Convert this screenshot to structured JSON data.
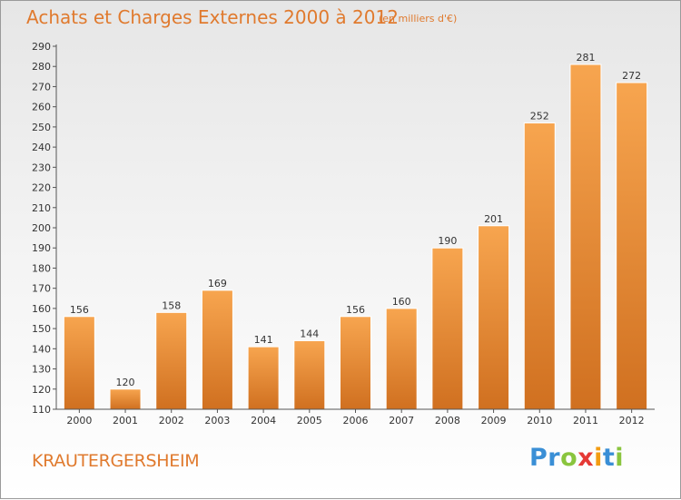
{
  "header": {
    "title": "Achats et Charges Externes 2000 à 2012",
    "unit_note": "(en milliers d'€)"
  },
  "footer": {
    "commune": "KRAUTERGERSHEIM"
  },
  "logo": {
    "text": "Proxiti",
    "letters": [
      {
        "ch": "P",
        "color": "#3a8fd6"
      },
      {
        "ch": "r",
        "color": "#3a8fd6"
      },
      {
        "ch": "o",
        "color": "#8ac53e"
      },
      {
        "ch": "x",
        "color": "#e53935"
      },
      {
        "ch": "i",
        "color": "#f39c12"
      },
      {
        "ch": "t",
        "color": "#3a8fd6"
      },
      {
        "ch": "i",
        "color": "#8ac53e"
      }
    ]
  },
  "colors": {
    "accent": "#e07a2e",
    "bar_top": "#f7a54f",
    "bar_bottom": "#d07020",
    "axis_text": "#333333"
  },
  "chart_data": {
    "type": "bar",
    "title": "Achats et Charges Externes 2000 à 2012",
    "subtitle": "(en milliers d'€)",
    "xlabel": "",
    "ylabel": "",
    "categories": [
      "2000",
      "2001",
      "2002",
      "2003",
      "2004",
      "2005",
      "2006",
      "2007",
      "2008",
      "2009",
      "2010",
      "2011",
      "2012"
    ],
    "values": [
      156,
      120,
      158,
      169,
      141,
      144,
      156,
      160,
      190,
      201,
      252,
      281,
      272
    ],
    "ylim": [
      110,
      290
    ],
    "yticks": [
      110,
      120,
      130,
      140,
      150,
      160,
      170,
      180,
      190,
      200,
      210,
      220,
      230,
      240,
      250,
      260,
      270,
      280,
      290
    ],
    "grid": false,
    "legend": "none",
    "data_labels": true
  }
}
